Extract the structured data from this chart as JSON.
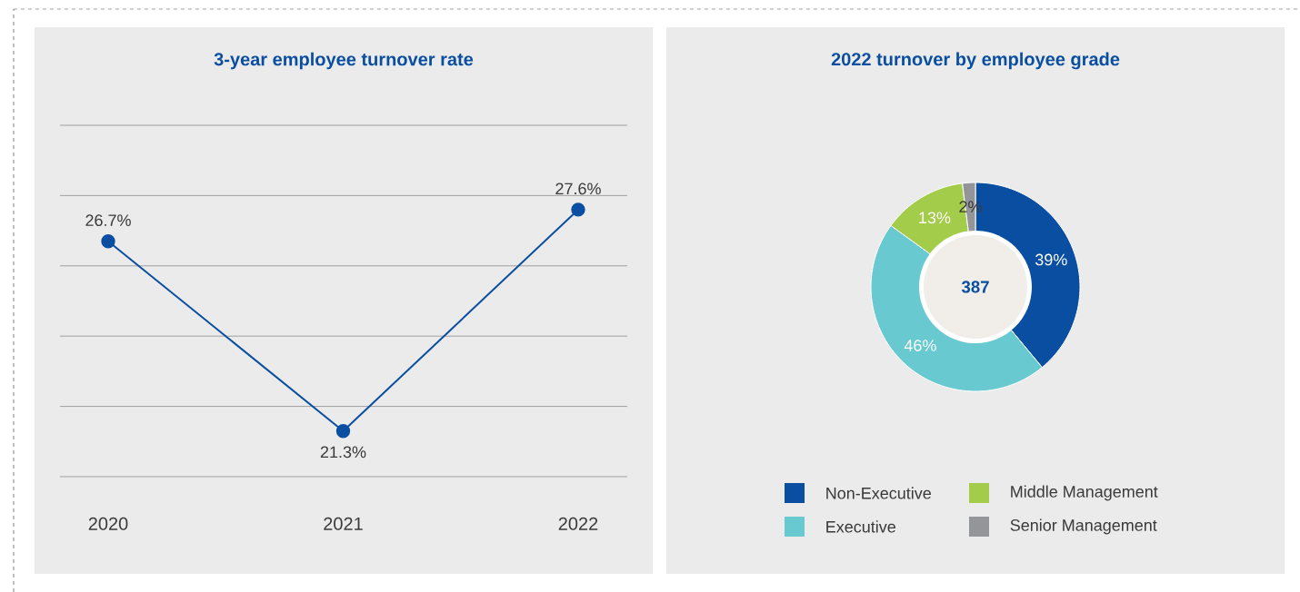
{
  "chart_data": [
    {
      "type": "line",
      "title": "3-year employee turnover rate",
      "categories": [
        "2020",
        "2021",
        "2022"
      ],
      "values": [
        26.7,
        21.3,
        27.6
      ],
      "value_labels": [
        "26.7%",
        "21.3%",
        "27.6%"
      ],
      "color": "#0a4ea2",
      "tick_labels": "x",
      "marker": "circle"
    },
    {
      "type": "donut",
      "title": "2022 turnover by employee grade",
      "categories": [
        "Non-Executive",
        "Executive",
        "Middle Management",
        "Senior Management"
      ],
      "values": [
        39,
        46,
        13,
        2
      ],
      "value_labels": [
        "39%",
        "46%",
        "13%",
        "2%"
      ],
      "colors": [
        "#0a4ea2",
        "#68c9d1",
        "#a3cc4a",
        "#939598"
      ],
      "annotations": [
        "387"
      ],
      "legend": "bottom"
    }
  ]
}
